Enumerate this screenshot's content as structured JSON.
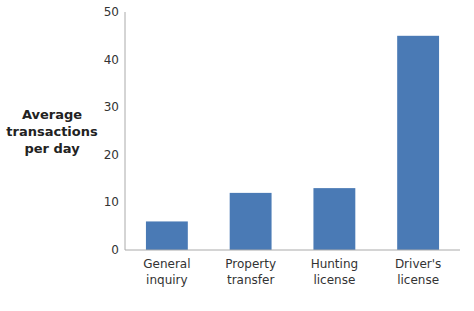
{
  "chart_data": {
    "type": "bar",
    "categories": [
      "General\ninquiry",
      "Property\ntransfer",
      "Hunting\nlicense",
      "Driver's\nlicense"
    ],
    "values": [
      6,
      12,
      13,
      45
    ],
    "color": "#4a7ab5",
    "ylabel": "Average\ntransactions\nper day",
    "ylim": [
      0,
      50
    ],
    "yticks": [
      0,
      10,
      20,
      30,
      40,
      50
    ],
    "grid": false
  }
}
